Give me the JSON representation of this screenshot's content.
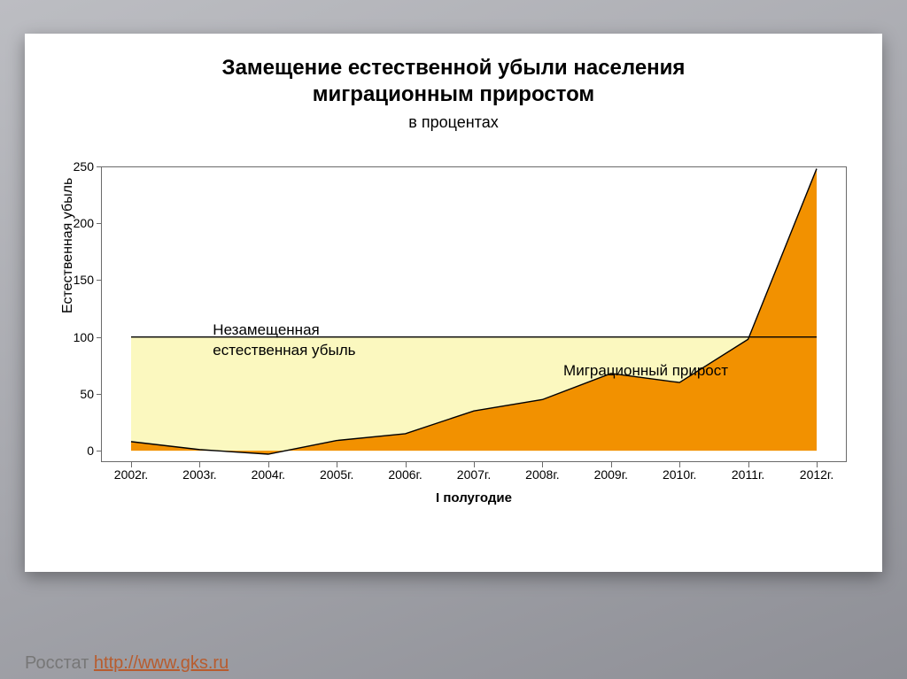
{
  "chart": {
    "type": "area",
    "title_line1": "Замещение естественной убыли населения",
    "title_line2": "миграционным приростом",
    "subtitle": "в процентах",
    "yaxis_label": "Естественная убыль",
    "xaxis_label": "I полугодие",
    "title_fontsize": 24,
    "subtitle_fontsize": 18,
    "label_fontsize": 16,
    "tick_fontsize": 14,
    "background_color": "#ffffff",
    "grid": false,
    "border_color": "#6a6a6a",
    "ylim": [
      -10,
      250
    ],
    "yticks": [
      0,
      50,
      100,
      150,
      200,
      250
    ],
    "x_categories": [
      "2002г.",
      "2003г.",
      "2004г.",
      "2005г.",
      "2006г.",
      "2007г.",
      "2008г.",
      "2009г.",
      "2010г.",
      "2011г.",
      "2012г."
    ],
    "series": {
      "migration_growth": {
        "label": "Миграционный прирост",
        "fill_color": "#f29100",
        "line_color": "#000000",
        "values": [
          8,
          1,
          -3,
          9,
          15,
          35,
          45,
          68,
          60,
          98,
          248
        ]
      },
      "unreplaced": {
        "label_line1": "Незамещенная",
        "label_line2": "естественная убыль",
        "fill_color": "#fbf8bf",
        "line_color": "#000000",
        "constant_value": 100
      }
    },
    "annotations": {
      "unreplaced_pos": {
        "left_pct": 15,
        "top_pct": 52
      },
      "migration_pos": {
        "left_pct": 62,
        "top_pct": 66
      }
    }
  },
  "footer": {
    "source_label": "Росстат ",
    "link_text": "http://www.gks.ru",
    "link_href": "http://www.gks.ru"
  },
  "slide_bg_gradient": [
    "#bcbdc2",
    "#8e8f96"
  ]
}
